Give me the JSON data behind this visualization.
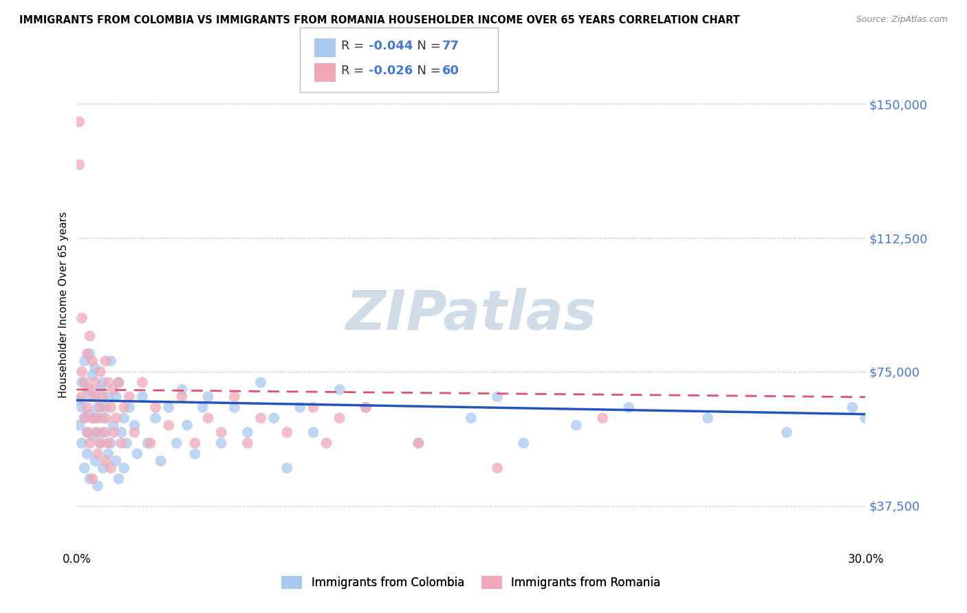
{
  "title": "IMMIGRANTS FROM COLOMBIA VS IMMIGRANTS FROM ROMANIA HOUSEHOLDER INCOME OVER 65 YEARS CORRELATION CHART",
  "source": "Source: ZipAtlas.com",
  "ylabel": "Householder Income Over 65 years",
  "xlim": [
    0.0,
    0.3
  ],
  "ylim": [
    25000,
    162500
  ],
  "yticks": [
    37500,
    75000,
    112500,
    150000
  ],
  "ytick_labels": [
    "$37,500",
    "$75,000",
    "$112,500",
    "$150,000"
  ],
  "xticks": [
    0.0,
    0.05,
    0.1,
    0.15,
    0.2,
    0.25,
    0.3
  ],
  "xtick_labels": [
    "0.0%",
    "",
    "",
    "",
    "",
    "",
    "30.0%"
  ],
  "colombia_R": -0.044,
  "colombia_N": 77,
  "romania_R": -0.026,
  "romania_N": 60,
  "colombia_color": "#a8c8f0",
  "romania_color": "#f0a8b8",
  "colombia_line_color": "#2255bb",
  "romania_line_color": "#e05070",
  "watermark": "ZIPatlas",
  "watermark_color": "#d0dde8",
  "legend_box_color": "#cccccc",
  "colombia_x": [
    0.001,
    0.001,
    0.002,
    0.002,
    0.002,
    0.003,
    0.003,
    0.003,
    0.004,
    0.004,
    0.004,
    0.005,
    0.005,
    0.005,
    0.006,
    0.006,
    0.006,
    0.007,
    0.007,
    0.007,
    0.008,
    0.008,
    0.008,
    0.009,
    0.009,
    0.01,
    0.01,
    0.01,
    0.011,
    0.011,
    0.012,
    0.012,
    0.013,
    0.013,
    0.014,
    0.015,
    0.015,
    0.016,
    0.016,
    0.017,
    0.018,
    0.018,
    0.019,
    0.02,
    0.022,
    0.023,
    0.025,
    0.027,
    0.03,
    0.032,
    0.035,
    0.038,
    0.04,
    0.042,
    0.045,
    0.048,
    0.05,
    0.055,
    0.06,
    0.065,
    0.07,
    0.075,
    0.08,
    0.085,
    0.09,
    0.1,
    0.11,
    0.13,
    0.15,
    0.16,
    0.17,
    0.19,
    0.21,
    0.24,
    0.27,
    0.295,
    0.3
  ],
  "colombia_y": [
    67000,
    60000,
    72000,
    55000,
    65000,
    78000,
    48000,
    62000,
    58000,
    70000,
    52000,
    80000,
    63000,
    45000,
    68000,
    57000,
    74000,
    62000,
    50000,
    76000,
    58000,
    65000,
    43000,
    70000,
    55000,
    62000,
    48000,
    72000,
    58000,
    65000,
    52000,
    68000,
    55000,
    78000,
    60000,
    50000,
    68000,
    45000,
    72000,
    58000,
    62000,
    48000,
    55000,
    65000,
    60000,
    52000,
    68000,
    55000,
    62000,
    50000,
    65000,
    55000,
    70000,
    60000,
    52000,
    65000,
    68000,
    55000,
    65000,
    58000,
    72000,
    62000,
    48000,
    65000,
    58000,
    70000,
    65000,
    55000,
    62000,
    68000,
    55000,
    60000,
    65000,
    62000,
    58000,
    65000,
    62000
  ],
  "romania_x": [
    0.001,
    0.001,
    0.002,
    0.002,
    0.002,
    0.003,
    0.003,
    0.004,
    0.004,
    0.004,
    0.005,
    0.005,
    0.005,
    0.006,
    0.006,
    0.006,
    0.007,
    0.007,
    0.007,
    0.008,
    0.008,
    0.009,
    0.009,
    0.009,
    0.01,
    0.01,
    0.011,
    0.011,
    0.011,
    0.012,
    0.012,
    0.013,
    0.013,
    0.014,
    0.014,
    0.015,
    0.016,
    0.017,
    0.018,
    0.02,
    0.022,
    0.025,
    0.028,
    0.03,
    0.035,
    0.04,
    0.045,
    0.05,
    0.055,
    0.06,
    0.065,
    0.07,
    0.08,
    0.09,
    0.095,
    0.1,
    0.11,
    0.13,
    0.16,
    0.2
  ],
  "romania_y": [
    145000,
    133000,
    90000,
    75000,
    68000,
    72000,
    62000,
    80000,
    65000,
    58000,
    85000,
    70000,
    55000,
    78000,
    62000,
    45000,
    72000,
    58000,
    68000,
    62000,
    52000,
    75000,
    65000,
    55000,
    68000,
    58000,
    78000,
    62000,
    50000,
    72000,
    55000,
    65000,
    48000,
    70000,
    58000,
    62000,
    72000,
    55000,
    65000,
    68000,
    58000,
    72000,
    55000,
    65000,
    60000,
    68000,
    55000,
    62000,
    58000,
    68000,
    55000,
    62000,
    58000,
    65000,
    55000,
    62000,
    65000,
    55000,
    48000,
    62000
  ]
}
